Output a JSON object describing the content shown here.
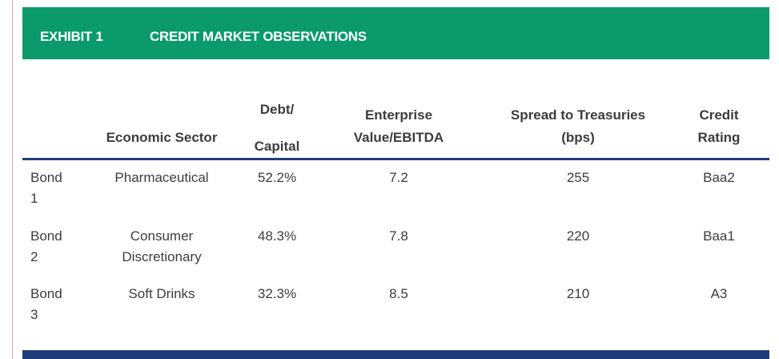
{
  "exhibit": {
    "label": "EXHIBIT 1",
    "title": "CREDIT MARKET OBSERVATIONS"
  },
  "columns": {
    "sector_label": "Economic Sector",
    "debt_line1": "Debt/",
    "debt_line2": "Capital",
    "ev_line1": "Enterprise",
    "ev_line2": "Value/EBITDA",
    "spread_line1": "Spread to Treasuries",
    "spread_line2": "(bps)",
    "rating_line1": "Credit",
    "rating_line2": "Rating"
  },
  "rows": [
    {
      "bond_line1": "Bond",
      "bond_line2": "1",
      "sector_line1": "Pharmaceutical",
      "sector_line2": "",
      "debt_capital": "52.2%",
      "ev_ebitda": "7.2",
      "spread": "255",
      "rating": "Baa2"
    },
    {
      "bond_line1": "Bond",
      "bond_line2": "2",
      "sector_line1": "Consumer",
      "sector_line2": "Discretionary",
      "debt_capital": "48.3%",
      "ev_ebitda": "7.8",
      "spread": "220",
      "rating": "Baa1"
    },
    {
      "bond_line1": "Bond",
      "bond_line2": "3",
      "sector_line1": "Soft Drinks",
      "sector_line2": "",
      "debt_capital": "32.3%",
      "ev_ebitda": "8.5",
      "spread": "210",
      "rating": "A3"
    }
  ],
  "colors": {
    "header_bar": "#0a9a6c",
    "rule": "#1f3d7a",
    "text": "#3c3c3c"
  }
}
